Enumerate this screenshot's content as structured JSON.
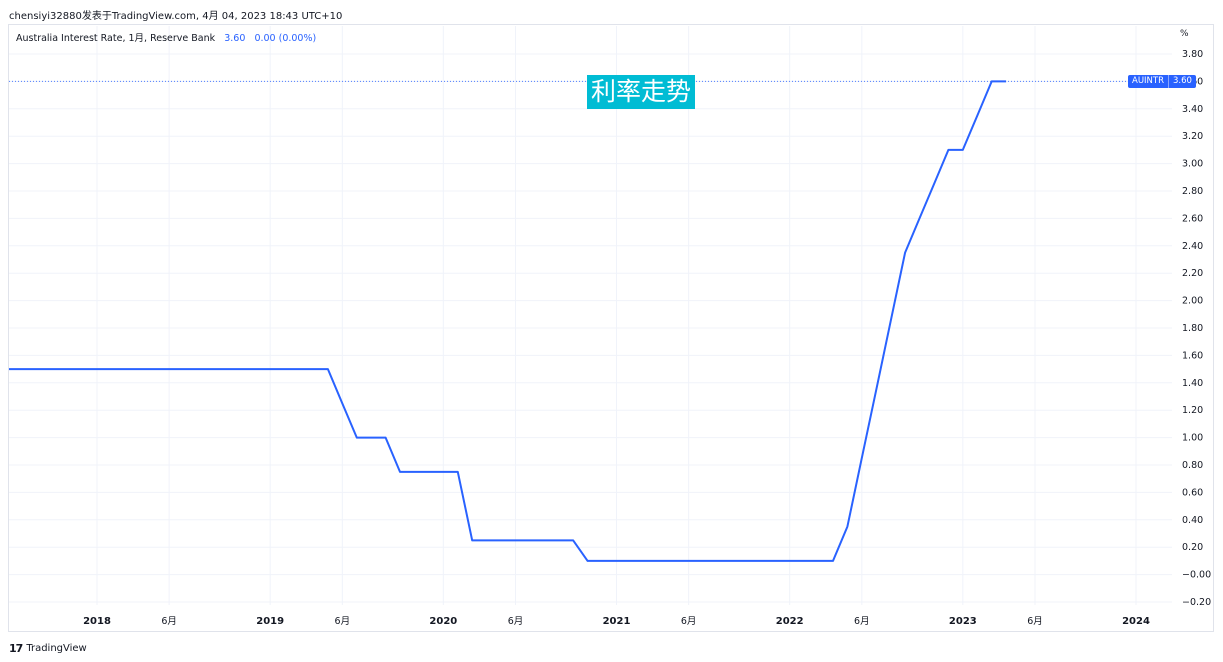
{
  "header": {
    "text": "chensiyi32880发表于TradingView.com, 4月 04, 2023 18:43 UTC+10"
  },
  "legend": {
    "symbol_text": "Australia Interest Rate, 1月, Reserve Bank",
    "last_value": "3.60",
    "change": "0.00 (0.00%)"
  },
  "annotation": {
    "text": "利率走势"
  },
  "price_tag": {
    "symbol": "AUINTR",
    "value": "3.60"
  },
  "footer": {
    "logo_mark": "17",
    "brand": "TradingView"
  },
  "colors": {
    "line": "#2962ff",
    "annotation_bg": "#00bcd4",
    "grid": "#f0f3fa"
  },
  "chart_data": {
    "type": "line",
    "title": "Australia Interest Rate, 1月, Reserve Bank",
    "ylabel": "%",
    "ylim": [
      -0.2,
      3.8
    ],
    "y_ticks": [
      "3.80",
      "3.60",
      "3.40",
      "3.20",
      "3.00",
      "2.80",
      "2.60",
      "2.40",
      "2.20",
      "2.00",
      "1.80",
      "1.60",
      "1.40",
      "1.20",
      "1.00",
      "0.80",
      "0.60",
      "0.40",
      "0.20",
      "−0.00",
      "−0.20"
    ],
    "x_ticks": [
      {
        "date": "2018-01",
        "label": "2018",
        "bold": true
      },
      {
        "date": "2018-06",
        "label": "6月",
        "bold": false
      },
      {
        "date": "2019-01",
        "label": "2019",
        "bold": true
      },
      {
        "date": "2019-06",
        "label": "6月",
        "bold": false
      },
      {
        "date": "2020-01",
        "label": "2020",
        "bold": true
      },
      {
        "date": "2020-06",
        "label": "6月",
        "bold": false
      },
      {
        "date": "2021-01",
        "label": "2021",
        "bold": true
      },
      {
        "date": "2021-06",
        "label": "6月",
        "bold": false
      },
      {
        "date": "2022-01",
        "label": "2022",
        "bold": true
      },
      {
        "date": "2022-06",
        "label": "6月",
        "bold": false
      },
      {
        "date": "2023-01",
        "label": "2023",
        "bold": true
      },
      {
        "date": "2023-06",
        "label": "6月",
        "bold": false
      },
      {
        "date": "2024-01",
        "label": "2024",
        "bold": true
      }
    ],
    "xlim": [
      "2017-06",
      "2024-04"
    ],
    "series": [
      {
        "x": [
          "2017-06",
          "2019-05",
          "2019-06",
          "2019-07",
          "2019-09",
          "2019-10",
          "2020-02",
          "2020-03",
          "2020-10",
          "2020-11",
          "2022-04",
          "2022-05",
          "2022-06",
          "2022-07",
          "2022-08",
          "2022-09",
          "2022-10",
          "2022-11",
          "2022-12",
          "2023-01",
          "2023-02",
          "2023-03",
          "2023-04"
        ],
        "y": [
          1.5,
          1.5,
          1.25,
          1.0,
          1.0,
          0.75,
          0.75,
          0.25,
          0.25,
          0.1,
          0.1,
          0.35,
          0.85,
          1.35,
          1.85,
          2.35,
          2.6,
          2.85,
          3.1,
          3.1,
          3.35,
          3.6,
          3.6
        ]
      }
    ],
    "grid": true,
    "last_value_line": 3.6
  }
}
